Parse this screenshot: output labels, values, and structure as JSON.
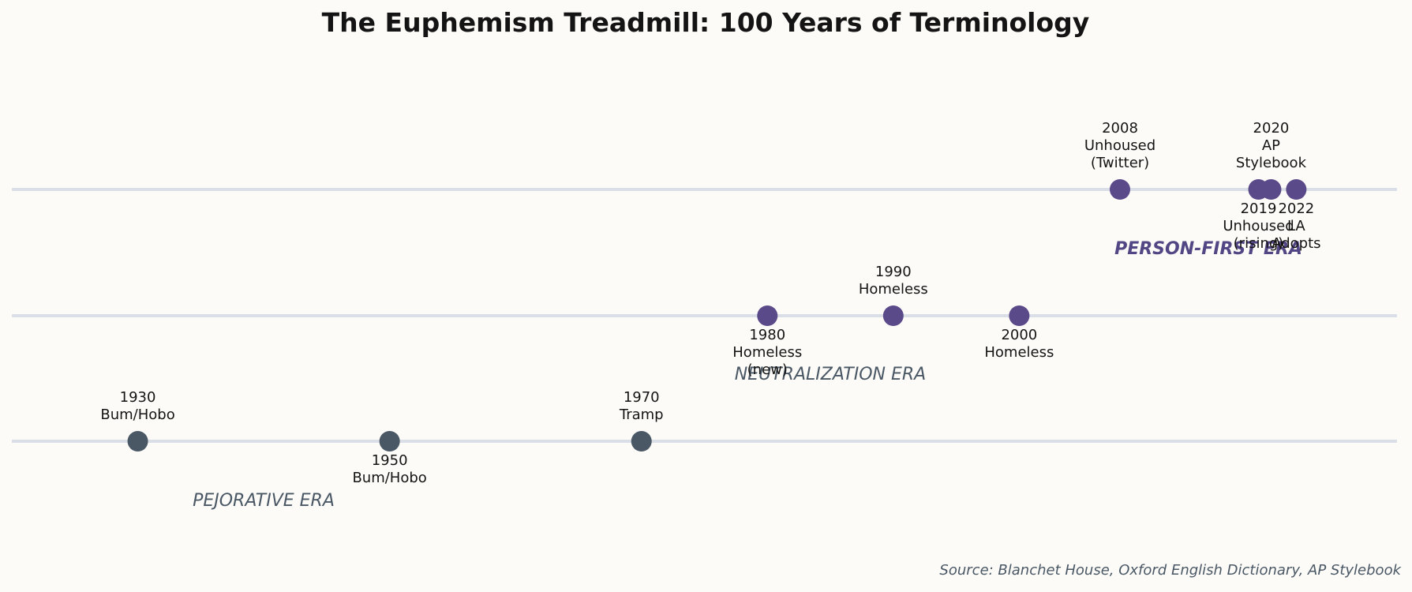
{
  "chart_data": {
    "type": "timeline",
    "title": "The Euphemism Treadmill: 100 Years of Terminology",
    "source": "Source: Blanchet House, Oxford English Dictionary, AP Stylebook",
    "xlim": [
      1920,
      2030
    ],
    "tiers": [
      {
        "id": 0,
        "era_label": "PEJORATIVE ERA"
      },
      {
        "id": 1,
        "era_label": "NEUTRALIZATION ERA"
      },
      {
        "id": 2,
        "era_label": "PERSON-FIRST ERA"
      }
    ],
    "events": [
      {
        "year": 1930,
        "term": "Bum/Hobo",
        "tier": 0,
        "label_pos": "above",
        "color": "#4a5866"
      },
      {
        "year": 1950,
        "term": "Bum/Hobo",
        "tier": 0,
        "label_pos": "below",
        "color": "#4a5866"
      },
      {
        "year": 1970,
        "term": "Tramp",
        "tier": 0,
        "label_pos": "above",
        "color": "#4a5866"
      },
      {
        "year": 1980,
        "term": "Homeless\n(new)",
        "tier": 1,
        "label_pos": "below",
        "color": "#5b4a8a"
      },
      {
        "year": 1990,
        "term": "Homeless",
        "tier": 1,
        "label_pos": "above",
        "color": "#5b4a8a"
      },
      {
        "year": 2000,
        "term": "Homeless",
        "tier": 1,
        "label_pos": "below",
        "color": "#5b4a8a"
      },
      {
        "year": 2008,
        "term": "Unhoused\n(Twitter)",
        "tier": 2,
        "label_pos": "above",
        "color": "#5b4a8a"
      },
      {
        "year": 2019,
        "term": "Unhoused\n(rising)",
        "tier": 2,
        "label_pos": "below",
        "color": "#5b4a8a"
      },
      {
        "year": 2020,
        "term": "AP\nStylebook",
        "tier": 2,
        "label_pos": "above",
        "color": "#5b4a8a"
      },
      {
        "year": 2022,
        "term": "LA\nAdopts",
        "tier": 2,
        "label_pos": "below",
        "color": "#5b4a8a"
      }
    ],
    "colors": {
      "background": "#fcfbf7",
      "track": "#dadfe7",
      "title": "#141414",
      "label": "#141414",
      "era_pejorative": "#4a5866",
      "era_neutral": "#4a5866",
      "era_person_first": "#534685",
      "source": "#4a5866"
    }
  }
}
